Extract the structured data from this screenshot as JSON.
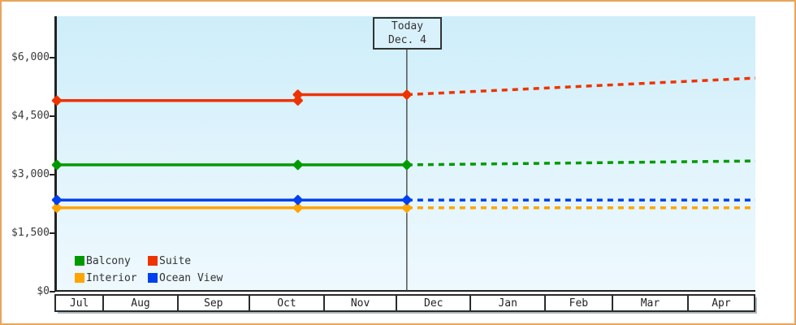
{
  "style": {
    "frame_border": "#e9a45c",
    "plot_bg_top": "#cdeefa",
    "plot_bg_bottom": "#eef9fe",
    "axis_color": "#222222",
    "text_color": "#3a3a3a",
    "today_line_color": "#3c3c3c",
    "today_box_bg": "#d9f1fb",
    "month_row_bg": "#ffffff"
  },
  "chart_data": {
    "type": "line",
    "grid": false,
    "y_axis": {
      "ylim": [
        0,
        7060
      ],
      "ticks": [
        {
          "value": 6000,
          "label": "$6,000"
        },
        {
          "value": 4500,
          "label": "$4,500"
        },
        {
          "value": 3000,
          "label": "$3,000"
        },
        {
          "value": 1500,
          "label": "$1,500"
        },
        {
          "value": 0,
          "label": "$0"
        }
      ]
    },
    "x_axis": {
      "months": [
        {
          "label": "Jul",
          "width_frac": 0.069
        },
        {
          "label": "Aug",
          "width_frac": 0.1065
        },
        {
          "label": "Sep",
          "width_frac": 0.1025
        },
        {
          "label": "Oct",
          "width_frac": 0.1075
        },
        {
          "label": "Nov",
          "width_frac": 0.1035
        },
        {
          "label": "Dec",
          "width_frac": 0.1065
        },
        {
          "label": "Jan",
          "width_frac": 0.1065
        },
        {
          "label": "Feb",
          "width_frac": 0.0965
        },
        {
          "label": "Mar",
          "width_frac": 0.1085
        },
        {
          "label": "Apr",
          "width_frac": 0.093
        }
      ]
    },
    "today": {
      "x_frac": 0.501,
      "box_line1": "Today",
      "box_line2": "Dec. 4"
    },
    "series": [
      {
        "name": "Interior",
        "color": "#ffa400",
        "solid": [
          {
            "x_frac": 0.0,
            "value": 2150
          },
          {
            "x_frac": 0.345,
            "value": 2150
          },
          {
            "x_frac": 0.501,
            "value": 2150
          }
        ],
        "forecast": [
          {
            "x_frac": 0.501,
            "value": 2150
          },
          {
            "x_frac": 1.0,
            "value": 2150
          }
        ]
      },
      {
        "name": "Ocean View",
        "color": "#0040ee",
        "solid": [
          {
            "x_frac": 0.0,
            "value": 2350
          },
          {
            "x_frac": 0.345,
            "value": 2350
          },
          {
            "x_frac": 0.501,
            "value": 2350
          }
        ],
        "forecast": [
          {
            "x_frac": 0.501,
            "value": 2350
          },
          {
            "x_frac": 1.0,
            "value": 2350
          }
        ]
      },
      {
        "name": "Balcony",
        "color": "#009a00",
        "solid": [
          {
            "x_frac": 0.0,
            "value": 3250
          },
          {
            "x_frac": 0.345,
            "value": 3250
          },
          {
            "x_frac": 0.501,
            "value": 3250
          }
        ],
        "forecast": [
          {
            "x_frac": 0.501,
            "value": 3250
          },
          {
            "x_frac": 1.0,
            "value": 3350
          }
        ]
      },
      {
        "name": "Suite",
        "color": "#ee3300",
        "solid": [
          {
            "x_frac": 0.0,
            "value": 4900
          },
          {
            "x_frac": 0.345,
            "value": 4900
          },
          {
            "x_frac": 0.345,
            "value": 5050
          },
          {
            "x_frac": 0.501,
            "value": 5050
          }
        ],
        "forecast": [
          {
            "x_frac": 0.501,
            "value": 5050
          },
          {
            "x_frac": 1.0,
            "value": 5475
          }
        ]
      }
    ],
    "legend": {
      "position": "inside-bottom-left",
      "items": [
        {
          "label": "Balcony",
          "color": "#009a00"
        },
        {
          "label": "Suite",
          "color": "#ee3300"
        },
        {
          "label": "Interior",
          "color": "#ffa400"
        },
        {
          "label": "Ocean View",
          "color": "#0040ee"
        }
      ]
    }
  }
}
